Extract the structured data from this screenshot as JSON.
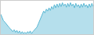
{
  "chart_data": {
    "type": "area",
    "values": [
      3.0,
      2.5,
      2.0,
      1.8,
      1.5,
      1.2,
      1.0,
      0.8,
      0.5,
      0.3,
      0.6,
      0.2,
      0.5,
      0.1,
      0.4,
      0.0,
      0.3,
      0.0,
      0.2,
      0.0,
      0.3,
      0.1,
      0.4,
      0.0,
      0.3,
      0.5,
      0.8,
      1.0,
      1.5,
      2.0,
      2.5,
      3.0,
      3.5,
      3.2,
      3.8,
      3.5,
      4.0,
      3.6,
      4.2,
      3.8,
      4.5,
      4.0,
      4.6,
      4.1,
      4.7,
      4.2,
      4.8,
      4.3,
      4.6,
      4.1,
      4.7,
      4.2,
      4.8,
      4.3,
      4.6,
      4.0,
      4.7,
      4.2,
      4.5,
      4.0,
      4.6,
      4.1,
      4.7,
      4.2,
      4.5,
      4.0,
      4.6,
      4.1,
      4.7,
      4.2
    ],
    "color": "#5bb8d4",
    "xlim": [
      0,
      69
    ],
    "ylim": [
      -0.1,
      5.1
    ],
    "tick_labels": false,
    "grid": false
  }
}
